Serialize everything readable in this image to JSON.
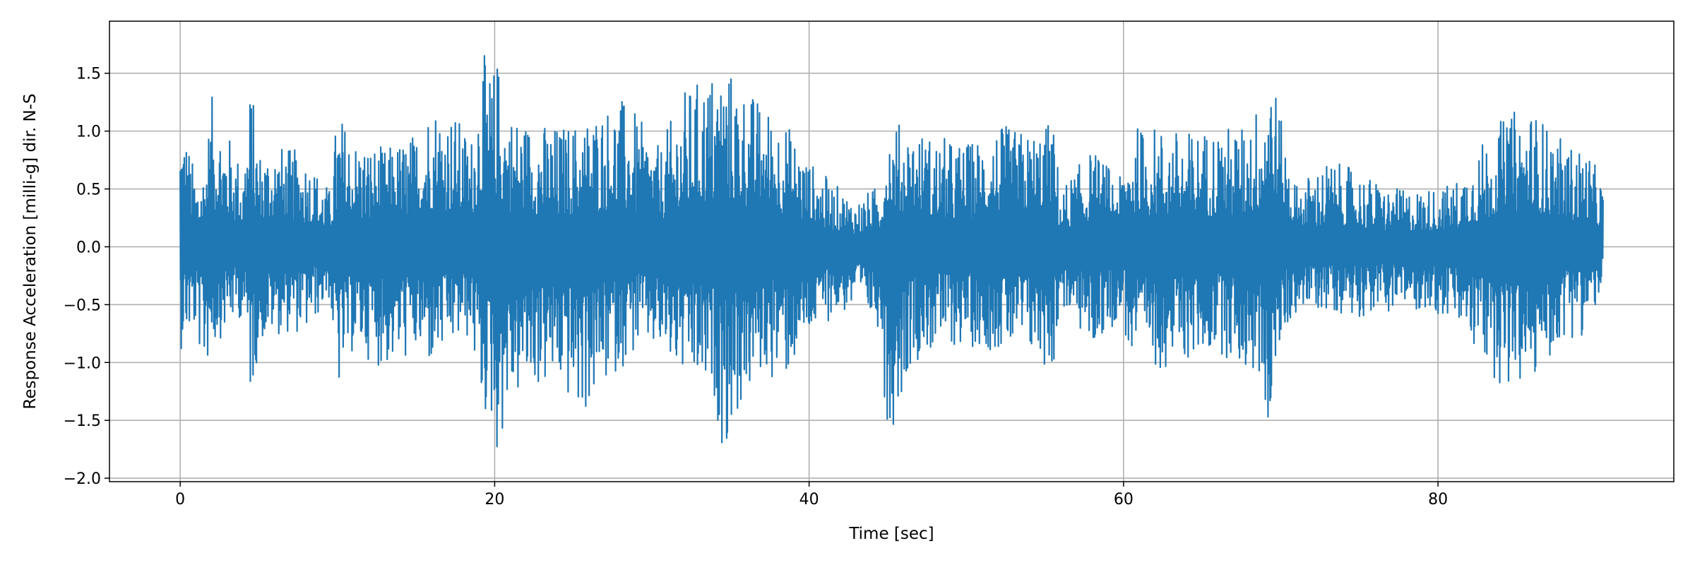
{
  "chart_data": {
    "type": "line",
    "title": "",
    "xlabel": "Time [sec]",
    "ylabel": "Response Acceleration [milli-g] dir. N-S",
    "xlim": [
      -4.5,
      95
    ],
    "ylim": [
      -2.03,
      1.95
    ],
    "xticks": [
      0,
      20,
      40,
      60,
      80
    ],
    "xtick_labels": [
      "0",
      "20",
      "40",
      "60",
      "80"
    ],
    "yticks": [
      -2.0,
      -1.5,
      -1.0,
      -0.5,
      0.0,
      0.5,
      1.0,
      1.5
    ],
    "ytick_labels": [
      "−2.0",
      "−1.5",
      "−1.0",
      "−0.5",
      "0.0",
      "0.5",
      "1.0",
      "1.5"
    ],
    "grid": true,
    "legend": "none",
    "series": [
      {
        "color": "#1f77b4",
        "envelope_x": [
          0,
          0.3,
          1,
          1.5,
          2,
          3,
          4,
          4.5,
          5,
          6,
          8,
          9.5,
          10,
          11,
          13,
          15,
          16,
          17.5,
          18.5,
          19.2,
          19.8,
          20.2,
          20.8,
          22,
          24,
          25.5,
          26.5,
          28,
          29.5,
          30.5,
          32,
          34,
          34.6,
          35.5,
          37,
          38.5,
          40,
          41.5,
          43,
          44.5,
          45,
          46.5,
          48,
          50,
          52,
          54,
          55.5,
          56,
          58,
          59.8,
          60.5,
          62,
          64,
          66,
          67.5,
          68.8,
          69.3,
          70,
          71,
          73,
          75,
          77,
          79,
          81,
          83,
          84.5,
          86,
          88,
          89.5,
          90.5
        ],
        "envelope_max": [
          1.15,
          1.05,
          0.6,
          0.7,
          1.3,
          1.0,
          0.7,
          1.45,
          0.85,
          0.9,
          0.8,
          0.5,
          1.2,
          0.95,
          0.85,
          1.0,
          1.3,
          1.15,
          0.95,
          1.7,
          1.5,
          1.65,
          1.2,
          1.1,
          1.05,
          1.1,
          1.2,
          1.3,
          1.05,
          0.85,
          1.35,
          1.55,
          1.6,
          1.45,
          1.25,
          1.1,
          0.75,
          0.55,
          0.4,
          0.55,
          1.1,
          1.05,
          0.95,
          0.9,
          1.05,
          1.0,
          1.1,
          0.5,
          0.85,
          0.6,
          1.05,
          1.05,
          1.0,
          1.05,
          1.05,
          1.3,
          1.75,
          1.1,
          0.55,
          0.75,
          0.65,
          0.5,
          0.5,
          0.55,
          0.95,
          1.15,
          1.2,
          0.9,
          0.85,
          0.55
        ],
        "envelope_min": [
          -0.9,
          -0.8,
          -0.75,
          -1.1,
          -0.9,
          -0.7,
          -0.6,
          -1.35,
          -0.85,
          -0.75,
          -0.75,
          -0.45,
          -1.3,
          -0.9,
          -1.05,
          -0.95,
          -1.05,
          -0.85,
          -0.8,
          -1.45,
          -1.55,
          -1.85,
          -1.4,
          -1.25,
          -1.2,
          -1.5,
          -1.3,
          -1.05,
          -0.85,
          -0.95,
          -1.15,
          -1.35,
          -1.8,
          -1.45,
          -1.1,
          -1.15,
          -0.8,
          -0.6,
          -0.55,
          -0.7,
          -1.7,
          -1.0,
          -0.9,
          -0.85,
          -0.9,
          -0.95,
          -1.1,
          -0.5,
          -0.9,
          -0.6,
          -1.0,
          -1.05,
          -1.0,
          -0.9,
          -1.05,
          -1.2,
          -1.65,
          -0.85,
          -0.55,
          -0.55,
          -0.6,
          -0.55,
          -0.55,
          -0.65,
          -1.05,
          -1.25,
          -1.2,
          -0.8,
          -0.75,
          -0.35
        ]
      }
    ]
  }
}
